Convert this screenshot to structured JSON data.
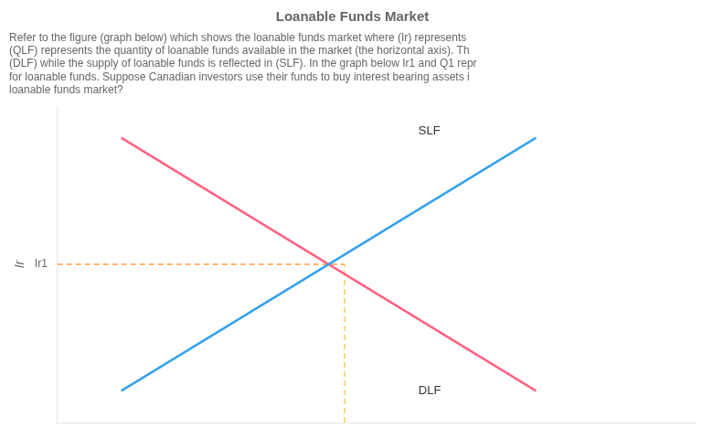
{
  "chart_data": {
    "type": "line",
    "title": "Loanable Funds Market",
    "subtitle": [
      "Refer to the figure (graph below) which shows the loanable funds market where (Ir) represents",
      "(QLF) represents the quantity of loanable funds available in the market (the horizontal axis). Th",
      "(DLF) while the supply of loanable funds is reflected in (SLF). In the graph below Ir1 and Q1 repr",
      "for loanable funds. Suppose Canadian investors use their funds to buy interest bearing assets i",
      "loanable funds market?"
    ],
    "ylabel": "Ir",
    "xlim": [
      0,
      10
    ],
    "ylim": [
      0,
      10
    ],
    "xticks": [],
    "yticks": [
      {
        "value": 5.0,
        "label": "Ir1"
      }
    ],
    "tick_labels": "y",
    "grid": false,
    "series": [
      {
        "x": [
          1.0,
          7.5
        ],
        "values": [
          1.0,
          9.0
        ]
      },
      {
        "x": [
          1.0,
          7.5
        ],
        "values": [
          9.0,
          1.0
        ]
      },
      {
        "x": [
          0,
          4.5
        ],
        "values": [
          5.0,
          5.0
        ],
        "line_style": "dashed"
      },
      {
        "x": [
          4.5,
          4.5
        ],
        "values": [
          0,
          5.0
        ],
        "line_style": "dashed"
      }
    ],
    "annotations": [
      {
        "text": "SLF",
        "x": 5.6,
        "y": 9.2
      },
      {
        "text": "DLF",
        "x": 5.6,
        "y": 1.0
      }
    ]
  }
}
